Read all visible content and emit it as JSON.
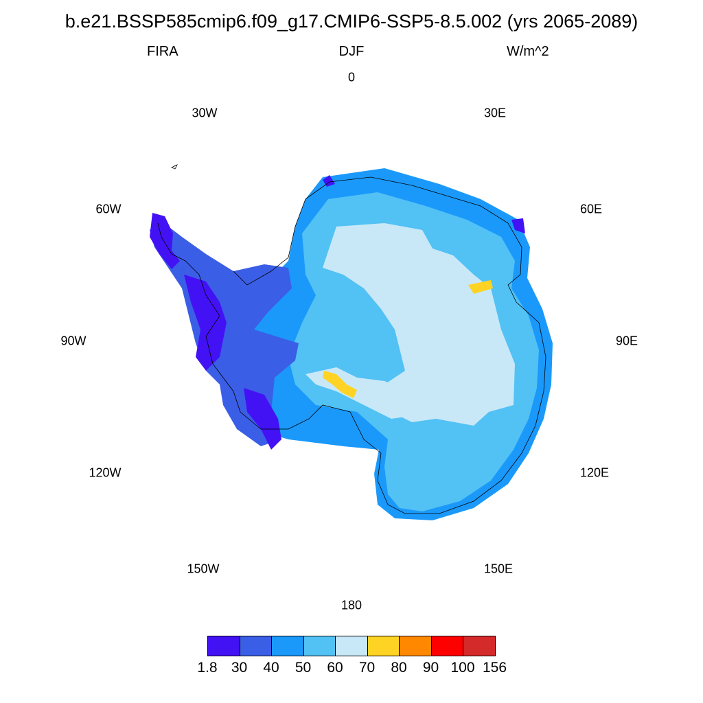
{
  "title": "b.e21.BSSP585cmip6.f09_g17.CMIP6-SSP5-8.5.002 (yrs 2065-2089)",
  "subtitle": {
    "left": "FIRA",
    "center": "DJF",
    "right": "W/m^2"
  },
  "longitude_labels": [
    "0",
    "30E",
    "60E",
    "90E",
    "120E",
    "150E",
    "180",
    "150W",
    "120W",
    "90W",
    "60W",
    "30W"
  ],
  "legend": {
    "labels": [
      "1.8",
      "30",
      "40",
      "50",
      "60",
      "70",
      "80",
      "90",
      "100",
      "156"
    ],
    "colors": [
      "#4212f5",
      "#3b5ee6",
      "#1a99fb",
      "#52c1f4",
      "#c8e8f8",
      "#ffd323",
      "#ff8800",
      "#ff0000",
      "#d42a2a"
    ]
  },
  "map": {
    "projection": "south polar stereographic",
    "region": "Antarctica",
    "field_colors": {
      "coast_dark": "#4212f5",
      "peninsula": "#3b5ee6",
      "margin": "#1a99fb",
      "slope": "#52c1f4",
      "plateau": "#c8e8f8",
      "hot_spot": "#ffd323"
    }
  }
}
